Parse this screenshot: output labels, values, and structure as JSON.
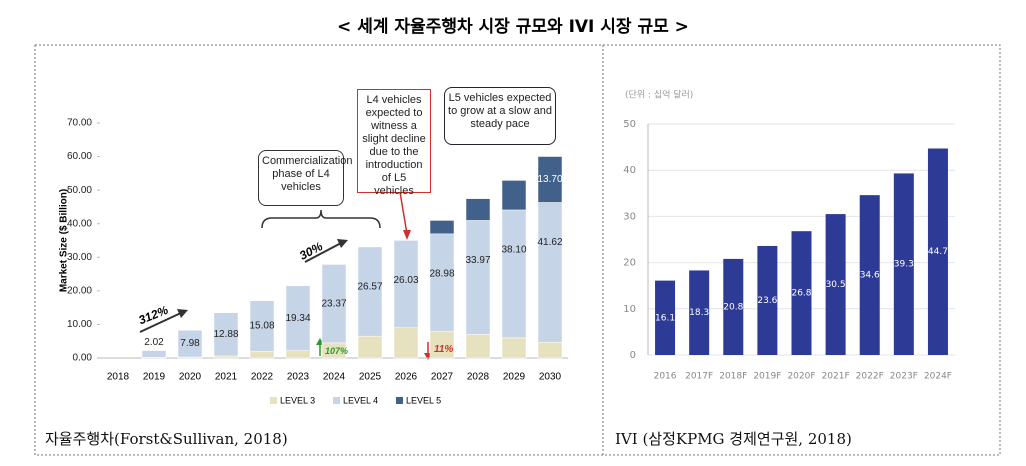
{
  "header": {
    "title": "< 세계 자율주행차 시장 규모와 IVI 시장 규모 >"
  },
  "chart_data": [
    {
      "type": "stacked_bar",
      "caption": "자율주행차(Forst&Sullivan, 2018)",
      "y_label": "Market Size ($ Billion)",
      "categories": [
        "2018",
        "2019",
        "2020",
        "2021",
        "2022",
        "2023",
        "2024",
        "2025",
        "2026",
        "2027",
        "2028",
        "2029",
        "2030"
      ],
      "series": [
        {
          "name": "LEVEL 3",
          "color": "#e6e2bf",
          "values": [
            null,
            0.2,
            0.3,
            0.6,
            2.0,
            2.2,
            4.5,
            6.5,
            9.0,
            8.0,
            7.0,
            6.0,
            4.7
          ]
        },
        {
          "name": "LEVEL 4",
          "color": "#c6d4e8",
          "values": [
            null,
            2.02,
            7.98,
            12.88,
            15.08,
            19.34,
            23.37,
            26.57,
            26.03,
            28.98,
            33.97,
            38.1,
            41.62
          ],
          "value_labels": [
            null,
            "2.02",
            "7.98",
            "12.88",
            "15.08",
            "19.34",
            "23.37",
            "26.57",
            "26.03",
            "28.98",
            "33.97",
            "38.10",
            "41.62"
          ]
        },
        {
          "name": "LEVEL 5",
          "color": "#41608a",
          "values": [
            null,
            null,
            null,
            null,
            null,
            null,
            null,
            null,
            null,
            4.0,
            6.5,
            8.8,
            13.7
          ],
          "value_labels": [
            null,
            null,
            null,
            null,
            null,
            null,
            null,
            null,
            null,
            null,
            null,
            null,
            "13.70"
          ]
        }
      ],
      "ylim": [
        0,
        70
      ],
      "yticks": [
        {
          "value": 0,
          "label": "0.00"
        },
        {
          "value": 10,
          "label": "10.00"
        },
        {
          "value": 20,
          "label": "20.00"
        },
        {
          "value": 30,
          "label": "30.00"
        },
        {
          "value": 40,
          "label": "40.00"
        },
        {
          "value": 50,
          "label": "50.00"
        },
        {
          "value": 60,
          "label": "60.00"
        },
        {
          "value": 70,
          "label": "70.00"
        }
      ],
      "legend": "bottom",
      "annotations": [
        "Commercialization phase of L4 vehicles",
        "L4 vehicles expected to witness a slight decline due to the introduction of L5 vehicles",
        "L5 vehicles expected to grow at a slow and steady pace",
        "312%",
        "30%",
        "107%",
        "11%"
      ]
    },
    {
      "type": "bar",
      "caption": "IVI (삼정KPMG 경제연구원, 2018)",
      "unit_label": "(단위 : 십억 달러)",
      "categories": [
        "2016",
        "2017F",
        "2018F",
        "2019F",
        "2020F",
        "2021F",
        "2022F",
        "2023F",
        "2024F"
      ],
      "values": [
        16.1,
        18.3,
        20.8,
        23.6,
        26.8,
        30.5,
        34.6,
        39.3,
        44.7
      ],
      "color": "#2d3a96",
      "ylim": [
        0,
        50
      ],
      "yticks": [
        0,
        10,
        20,
        30,
        40,
        50
      ],
      "grid": true
    }
  ]
}
